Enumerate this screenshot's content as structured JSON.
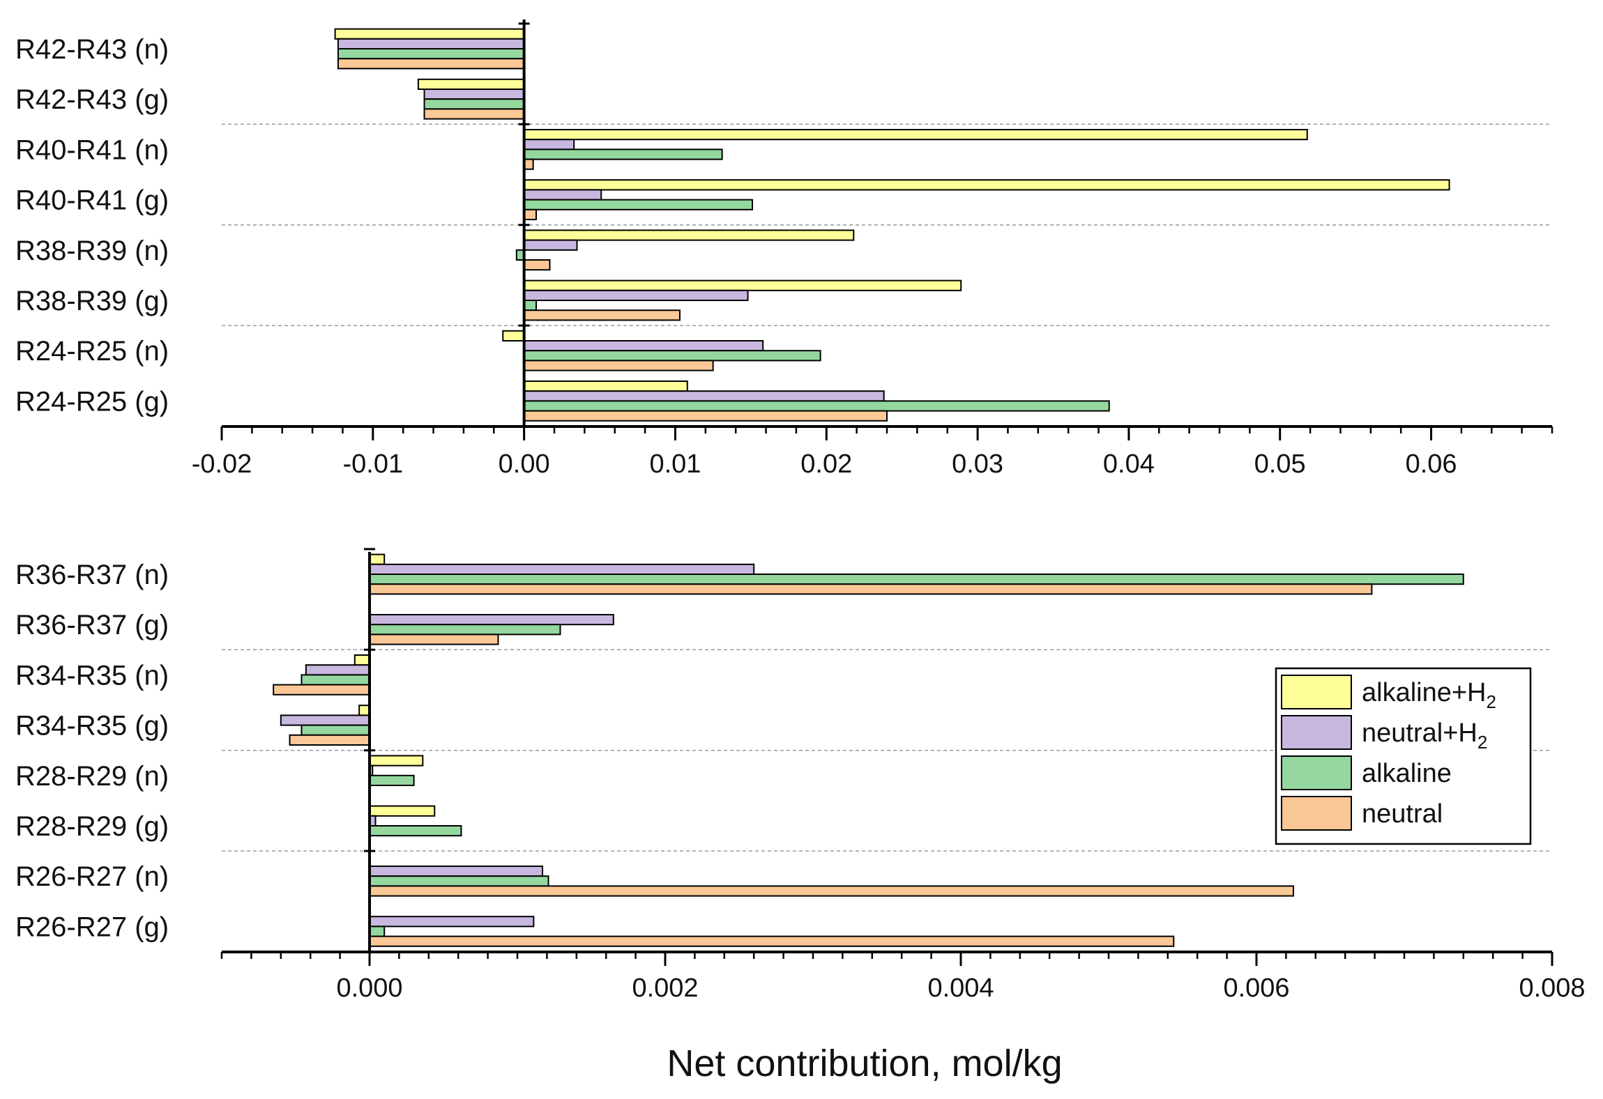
{
  "chart_data": [
    {
      "type": "bar",
      "orientation": "horizontal",
      "categories": [
        "R42-R43 (n)",
        "R42-R43 (g)",
        "R40-R41 (n)",
        "R40-R41 (g)",
        "R38-R39 (n)",
        "R38-R39 (g)",
        "R24-R25 (n)",
        "R24-R25 (g)"
      ],
      "series": [
        {
          "name": "alkaline+H2",
          "values": [
            -0.0125,
            -0.007,
            0.0518,
            0.0612,
            0.0218,
            0.0289,
            -0.0014,
            0.0108
          ]
        },
        {
          "name": "neutral+H2",
          "values": [
            -0.0123,
            -0.0066,
            0.0033,
            0.0051,
            0.0035,
            0.0148,
            0.0158,
            0.0238
          ]
        },
        {
          "name": "alkaline",
          "values": [
            -0.0123,
            -0.0066,
            0.0131,
            0.0151,
            -0.0005,
            0.0008,
            0.0196,
            0.0387
          ]
        },
        {
          "name": "neutral",
          "values": [
            -0.0123,
            -0.0066,
            0.0006,
            0.0008,
            0.0017,
            0.0103,
            0.0125,
            0.024
          ]
        }
      ],
      "xlim": [
        -0.02,
        0.068
      ],
      "tick_labels": [
        "-0.02",
        "-0.01",
        "0.00",
        "0.01",
        "0.02",
        "0.03",
        "0.04",
        "0.05",
        "0.06"
      ],
      "tick_values": [
        -0.02,
        -0.01,
        0,
        0.01,
        0.02,
        0.03,
        0.04,
        0.05,
        0.06
      ],
      "minor_step": 0.002
    },
    {
      "type": "bar",
      "orientation": "horizontal",
      "categories": [
        "R36-R37 (n)",
        "R36-R37 (g)",
        "R34-R35 (n)",
        "R34-R35 (g)",
        "R28-R29 (n)",
        "R28-R29 (g)",
        "R26-R27 (n)",
        "R26-R27 (g)"
      ],
      "series": [
        {
          "name": "alkaline+H2",
          "values": [
            0.0001,
            0.0,
            -0.0001,
            -7e-05,
            0.00036,
            0.00044,
            0.0,
            0.0
          ]
        },
        {
          "name": "neutral+H2",
          "values": [
            0.0026,
            0.00165,
            -0.00043,
            -0.0006,
            2e-05,
            4e-05,
            0.00117,
            0.00111
          ]
        },
        {
          "name": "alkaline",
          "values": [
            0.0074,
            0.00129,
            -0.00046,
            -0.00046,
            0.0003,
            0.00062,
            0.00121,
            0.0001
          ]
        },
        {
          "name": "neutral",
          "values": [
            0.00678,
            0.00087,
            -0.00065,
            -0.00054,
            0.0,
            0.0,
            0.00625,
            0.00544
          ]
        }
      ],
      "xlim": [
        -0.001,
        0.008
      ],
      "tick_labels": [
        "0.000",
        "0.002",
        "0.004",
        "0.006",
        "0.008"
      ],
      "tick_values": [
        0,
        0.002,
        0.004,
        0.006,
        0.008
      ],
      "minor_step": 0.0002
    }
  ],
  "legend": {
    "placement": "right of lower panel",
    "items": [
      {
        "name": "alkaline+H2",
        "label": "alkaline+H",
        "subscript": "2",
        "color": "#FFFF99"
      },
      {
        "name": "neutral+H2",
        "label": "neutral+H",
        "subscript": "2",
        "color": "#C8B8E0"
      },
      {
        "name": "alkaline",
        "label": "alkaline",
        "subscript": "",
        "color": "#94D8A0"
      },
      {
        "name": "neutral",
        "label": "neutral",
        "subscript": "",
        "color": "#F9C896"
      }
    ]
  },
  "xlabel": "Net contribution, mol/kg"
}
